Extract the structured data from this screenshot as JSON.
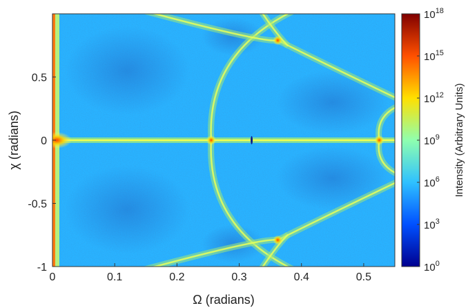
{
  "chart_data": {
    "type": "heatmap",
    "title": "",
    "xlabel": "Ω (radians)",
    "ylabel": "χ (radians)",
    "xlim": [
      0,
      0.55
    ],
    "ylim": [
      -1,
      1
    ],
    "xticks": [
      {
        "value": 0,
        "label": "0"
      },
      {
        "value": 0.1,
        "label": "0.1"
      },
      {
        "value": 0.2,
        "label": "0.2"
      },
      {
        "value": 0.3,
        "label": "0.3"
      },
      {
        "value": 0.4,
        "label": "0.4"
      },
      {
        "value": 0.5,
        "label": "0.5"
      }
    ],
    "yticks": [
      {
        "value": 0.5,
        "label": "0.5"
      },
      {
        "value": 0,
        "label": "0"
      },
      {
        "value": -0.5,
        "label": "-0.5"
      },
      {
        "value": -1,
        "label": "-1"
      }
    ],
    "colorbar": {
      "label": "Intensity (Arbitrary Units)",
      "scale": "log",
      "range": [
        1,
        1e+18
      ],
      "ticks": [
        {
          "base": "10",
          "exp": "18",
          "value": 1e+18
        },
        {
          "base": "10",
          "exp": "15",
          "value": 1000000000000000.0
        },
        {
          "base": "10",
          "exp": "12",
          "value": 1000000000000.0
        },
        {
          "base": "10",
          "exp": "9",
          "value": 1000000000.0
        },
        {
          "base": "10",
          "exp": "6",
          "value": 1000000.0
        },
        {
          "base": "10",
          "exp": "3",
          "value": 1000.0
        },
        {
          "base": "10",
          "exp": "0",
          "value": 1
        }
      ],
      "colormap": [
        "#00008f",
        "#0050ff",
        "#2fc1ff",
        "#8fffaf",
        "#ffe000",
        "#ff5000",
        "#800000"
      ]
    },
    "features": {
      "background_level_log10": 5.6,
      "vertical_line_x": 0,
      "horizontal_line_y": 0,
      "bright_points": [
        {
          "x": 0.255,
          "y": 0
        },
        {
          "x": 0.362,
          "y": 0.79
        },
        {
          "x": 0.362,
          "y": -0.79
        },
        {
          "x": 0.525,
          "y": 0
        }
      ],
      "dark_point": {
        "x": 0.32,
        "y": 0
      }
    }
  }
}
